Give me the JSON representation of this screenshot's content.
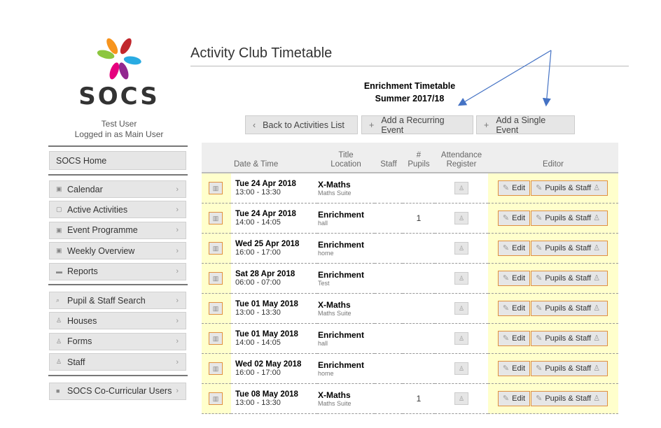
{
  "brand": {
    "name": "SOCS",
    "colors": [
      "#8cc63f",
      "#f7941d",
      "#c1272d",
      "#29abe2",
      "#92278f",
      "#e6007e"
    ]
  },
  "user": {
    "name": "Test User",
    "role": "Logged in as Main User"
  },
  "sidebar": {
    "home": "SOCS Home",
    "group1": [
      {
        "label": "Calendar",
        "icon": "calendar-icon"
      },
      {
        "label": "Active Activities",
        "icon": "clipboard-icon"
      },
      {
        "label": "Event Programme",
        "icon": "calendar-icon"
      },
      {
        "label": "Weekly Overview",
        "icon": "calendar-icon"
      },
      {
        "label": "Reports",
        "icon": "folder-icon"
      }
    ],
    "group2": [
      {
        "label": "Pupil & Staff Search",
        "icon": "search-icon"
      },
      {
        "label": "Houses",
        "icon": "user-icon"
      },
      {
        "label": "Forms",
        "icon": "user-icon"
      },
      {
        "label": "Staff",
        "icon": "user-icon"
      }
    ],
    "group3": [
      {
        "label": "SOCS Co-Curricular Users",
        "icon": "lock-icon"
      }
    ]
  },
  "page": {
    "title": "Activity Club Timetable",
    "subtitle1": "Enrichment Timetable",
    "subtitle2": "Summer 2017/18"
  },
  "buttons": {
    "back": "Back to Activities List",
    "recurring": "Add a Recurring Event",
    "single": "Add a Single Event"
  },
  "table": {
    "headers": {
      "date": "Date & Time",
      "title": "Title",
      "location": "Location",
      "staff": "Staff",
      "num": "#",
      "pupils": "Pupils",
      "att1": "Attendance",
      "att2": "Register",
      "editor": "Editor"
    },
    "edit_label": "Edit",
    "pupils_staff_label": "Pupils & Staff",
    "rows": [
      {
        "date": "Tue 24 Apr 2018",
        "time": "13:00 - 13:30",
        "title": "X-Maths",
        "location": "Maths Suite",
        "staff": "",
        "pupils": ""
      },
      {
        "date": "Tue 24 Apr 2018",
        "time": "14:00 - 14:05",
        "title": "Enrichment",
        "location": "hall",
        "staff": "",
        "pupils": "1"
      },
      {
        "date": "Wed 25 Apr 2018",
        "time": "16:00 - 17:00",
        "title": "Enrichment",
        "location": "home",
        "staff": "",
        "pupils": ""
      },
      {
        "date": "Sat 28 Apr 2018",
        "time": "06:00 - 07:00",
        "title": "Enrichment",
        "location": "Test",
        "staff": "",
        "pupils": ""
      },
      {
        "date": "Tue 01 May 2018",
        "time": "13:00 - 13:30",
        "title": "X-Maths",
        "location": "Maths Suite",
        "staff": "",
        "pupils": ""
      },
      {
        "date": "Tue 01 May 2018",
        "time": "14:00 - 14:05",
        "title": "Enrichment",
        "location": "hall",
        "staff": "",
        "pupils": ""
      },
      {
        "date": "Wed 02 May 2018",
        "time": "16:00 - 17:00",
        "title": "Enrichment",
        "location": "home",
        "staff": "",
        "pupils": ""
      },
      {
        "date": "Tue 08 May 2018",
        "time": "13:00 - 13:30",
        "title": "X-Maths",
        "location": "Maths Suite",
        "staff": "",
        "pupils": "1"
      }
    ]
  },
  "annotation_color": "#4472c4"
}
